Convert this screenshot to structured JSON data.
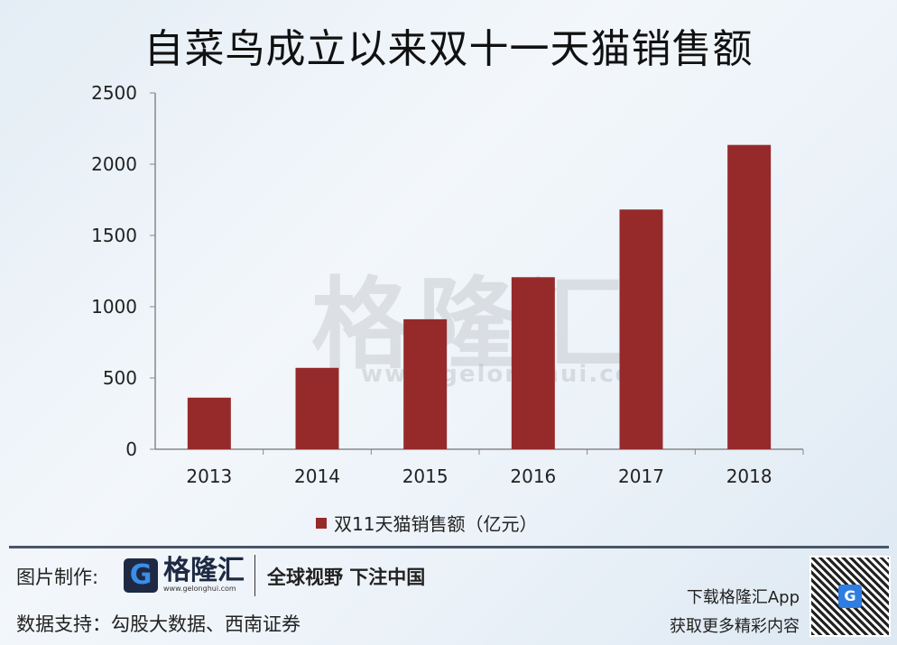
{
  "title": "自菜鸟成立以来双十一天猫销售额",
  "watermark": {
    "text": "格隆汇",
    "url": "www.gelonghui.com"
  },
  "chart_data": {
    "type": "bar",
    "title": "自菜鸟成立以来双十一天猫销售额",
    "categories": [
      "2013",
      "2014",
      "2015",
      "2016",
      "2017",
      "2018"
    ],
    "series": [
      {
        "name": "双11天猫销售额（亿元）",
        "values": [
          362,
          571,
          912,
          1207,
          1682,
          2135
        ],
        "color": "#962a2a"
      }
    ],
    "ylim": [
      0,
      2500
    ],
    "yticks": [
      0,
      500,
      1000,
      1500,
      2000,
      2500
    ],
    "grid": false,
    "legend": "bottom"
  },
  "footer": {
    "made_by_label": "图片制作:",
    "logo_name": "格隆汇",
    "logo_url": "www.gelonghui.com",
    "slogan": "全球视野 下注中国",
    "source_label": "数据支持：勾股大数据、西南证券",
    "app_line1": "下载格隆汇App",
    "app_line2": "获取更多精彩内容"
  }
}
